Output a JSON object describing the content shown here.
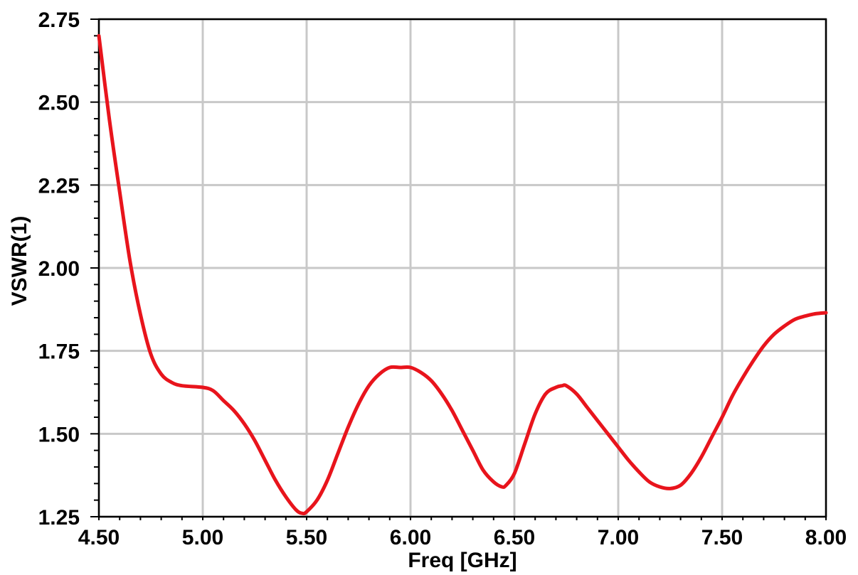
{
  "chart_data": {
    "type": "line",
    "title": "",
    "xlabel": "Freq [GHz]",
    "ylabel": "VSWR(1)",
    "xlim": [
      4.5,
      8.0
    ],
    "ylim": [
      1.25,
      2.75
    ],
    "x_ticks": [
      "4.50",
      "5.00",
      "5.50",
      "6.00",
      "6.50",
      "7.00",
      "7.50",
      "8.00"
    ],
    "y_ticks": [
      "1.25",
      "1.50",
      "1.75",
      "2.00",
      "2.25",
      "2.50",
      "2.75"
    ],
    "grid": true,
    "series": [
      {
        "color": "#e8141c",
        "x": [
          4.5,
          4.55,
          4.6,
          4.65,
          4.7,
          4.75,
          4.8,
          4.85,
          4.9,
          5.0,
          5.05,
          5.1,
          5.15,
          5.2,
          5.25,
          5.3,
          5.35,
          5.4,
          5.45,
          5.48,
          5.5,
          5.55,
          5.6,
          5.65,
          5.7,
          5.75,
          5.8,
          5.85,
          5.9,
          5.95,
          6.0,
          6.05,
          6.1,
          6.15,
          6.2,
          6.25,
          6.3,
          6.35,
          6.4,
          6.44,
          6.46,
          6.5,
          6.55,
          6.6,
          6.65,
          6.7,
          6.73,
          6.75,
          6.8,
          6.85,
          6.9,
          6.95,
          7.0,
          7.05,
          7.1,
          7.15,
          7.2,
          7.25,
          7.3,
          7.35,
          7.4,
          7.45,
          7.5,
          7.55,
          7.6,
          7.65,
          7.7,
          7.75,
          7.8,
          7.85,
          7.9,
          7.95,
          8.0
        ],
        "y": [
          2.7,
          2.45,
          2.23,
          2.02,
          1.86,
          1.74,
          1.68,
          1.655,
          1.645,
          1.64,
          1.63,
          1.6,
          1.57,
          1.53,
          1.48,
          1.42,
          1.36,
          1.31,
          1.27,
          1.26,
          1.265,
          1.3,
          1.36,
          1.44,
          1.52,
          1.59,
          1.645,
          1.68,
          1.7,
          1.7,
          1.7,
          1.685,
          1.66,
          1.62,
          1.57,
          1.51,
          1.45,
          1.39,
          1.355,
          1.34,
          1.345,
          1.38,
          1.47,
          1.56,
          1.62,
          1.64,
          1.645,
          1.645,
          1.62,
          1.58,
          1.54,
          1.5,
          1.46,
          1.42,
          1.385,
          1.355,
          1.34,
          1.335,
          1.345,
          1.38,
          1.43,
          1.49,
          1.55,
          1.615,
          1.67,
          1.72,
          1.765,
          1.8,
          1.825,
          1.845,
          1.855,
          1.862,
          1.865
        ]
      }
    ]
  },
  "style": {
    "background": "#ffffff",
    "grid_color": "#c8c8c8",
    "axis_color": "#000000"
  }
}
